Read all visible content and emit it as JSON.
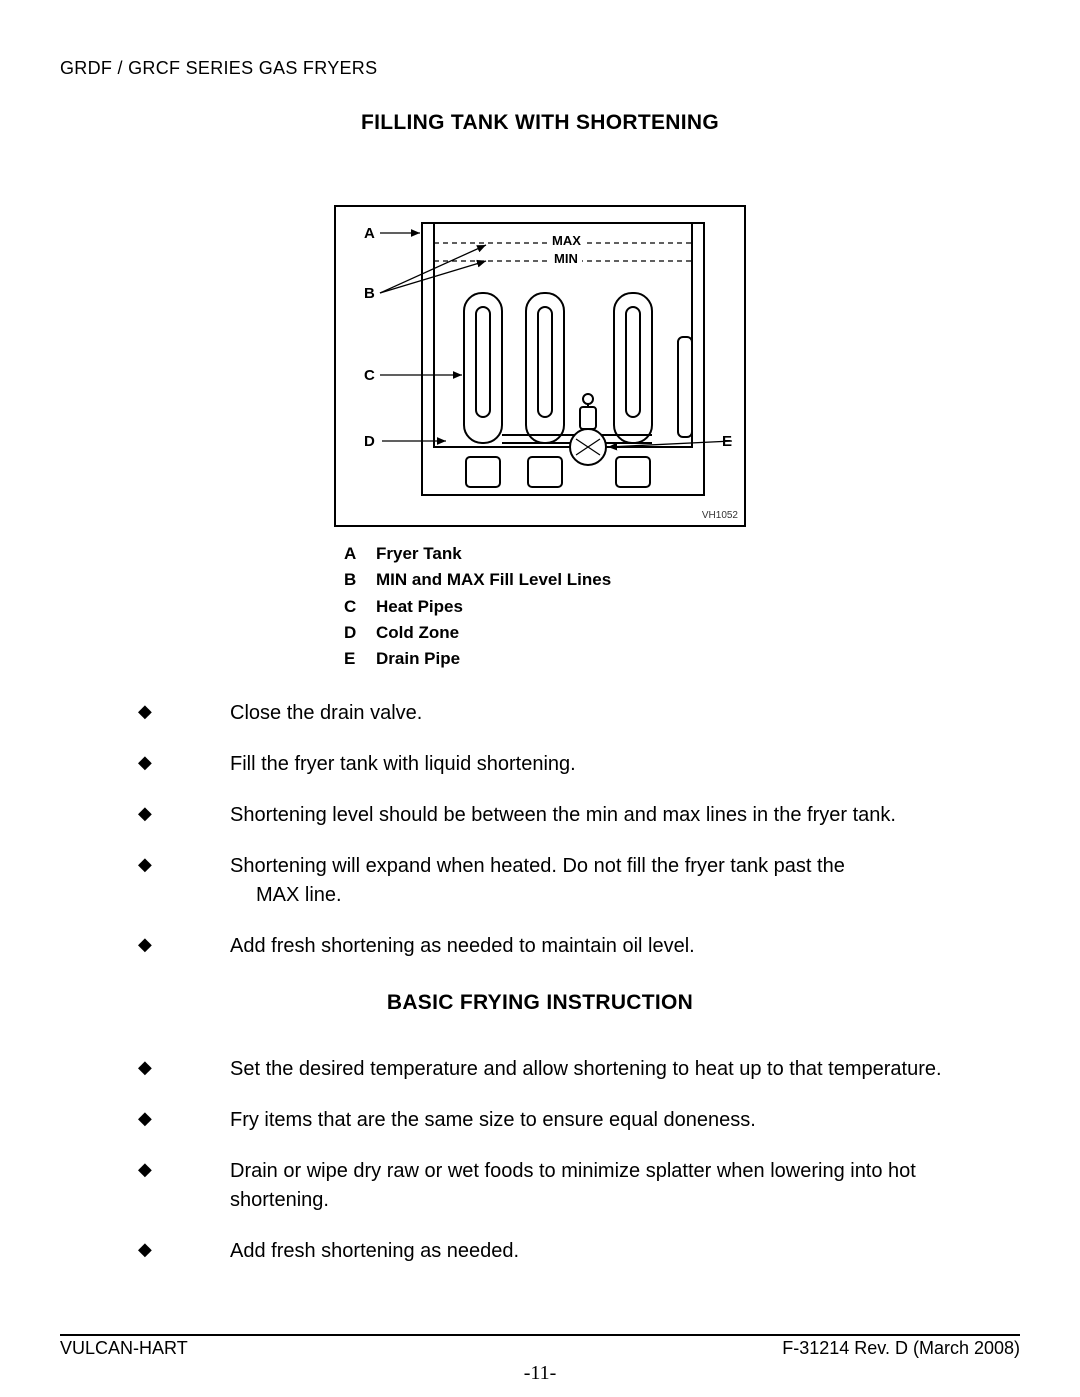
{
  "header": "GRDF / GRCF SERIES GAS FRYERS",
  "title1": "FILLING TANK WITH SHORTENING",
  "title2": "BASIC FRYING INSTRUCTION",
  "diagram": {
    "labels": {
      "A": "A",
      "B": "B",
      "C": "C",
      "D": "D",
      "E": "E"
    },
    "max": "MAX",
    "min": "MIN",
    "code": "VH1052"
  },
  "legend": [
    {
      "key": "A",
      "text": "Fryer Tank"
    },
    {
      "key": "B",
      "text": "MIN and MAX Fill Level Lines"
    },
    {
      "key": "C",
      "text": "Heat Pipes"
    },
    {
      "key": "D",
      "text": "Cold Zone"
    },
    {
      "key": "E",
      "text": "Drain Pipe"
    }
  ],
  "bullets1": [
    "Close the drain valve.",
    "Fill the fryer tank with liquid shortening.",
    "Shortening level should be between the min and max lines in the fryer tank.",
    "Shortening will expand when heated.  Do not fill the fryer tank past the\nMAX line.",
    "Add fresh shortening as needed to maintain oil level."
  ],
  "bullets2": [
    "Set the desired temperature and allow shortening to heat up to that temperature.",
    "Fry items that are the same size to ensure equal doneness.",
    "Drain or wipe dry raw or wet foods to minimize splatter when lowering into hot shortening.",
    "Add fresh shortening as needed."
  ],
  "footer": {
    "left": "VULCAN-HART",
    "right": "F-31214 Rev. D (March 2008)",
    "page": "-11-"
  },
  "style": {
    "text_color": "#000000",
    "bg_color": "#ffffff",
    "bullet_glyph": "◆"
  }
}
